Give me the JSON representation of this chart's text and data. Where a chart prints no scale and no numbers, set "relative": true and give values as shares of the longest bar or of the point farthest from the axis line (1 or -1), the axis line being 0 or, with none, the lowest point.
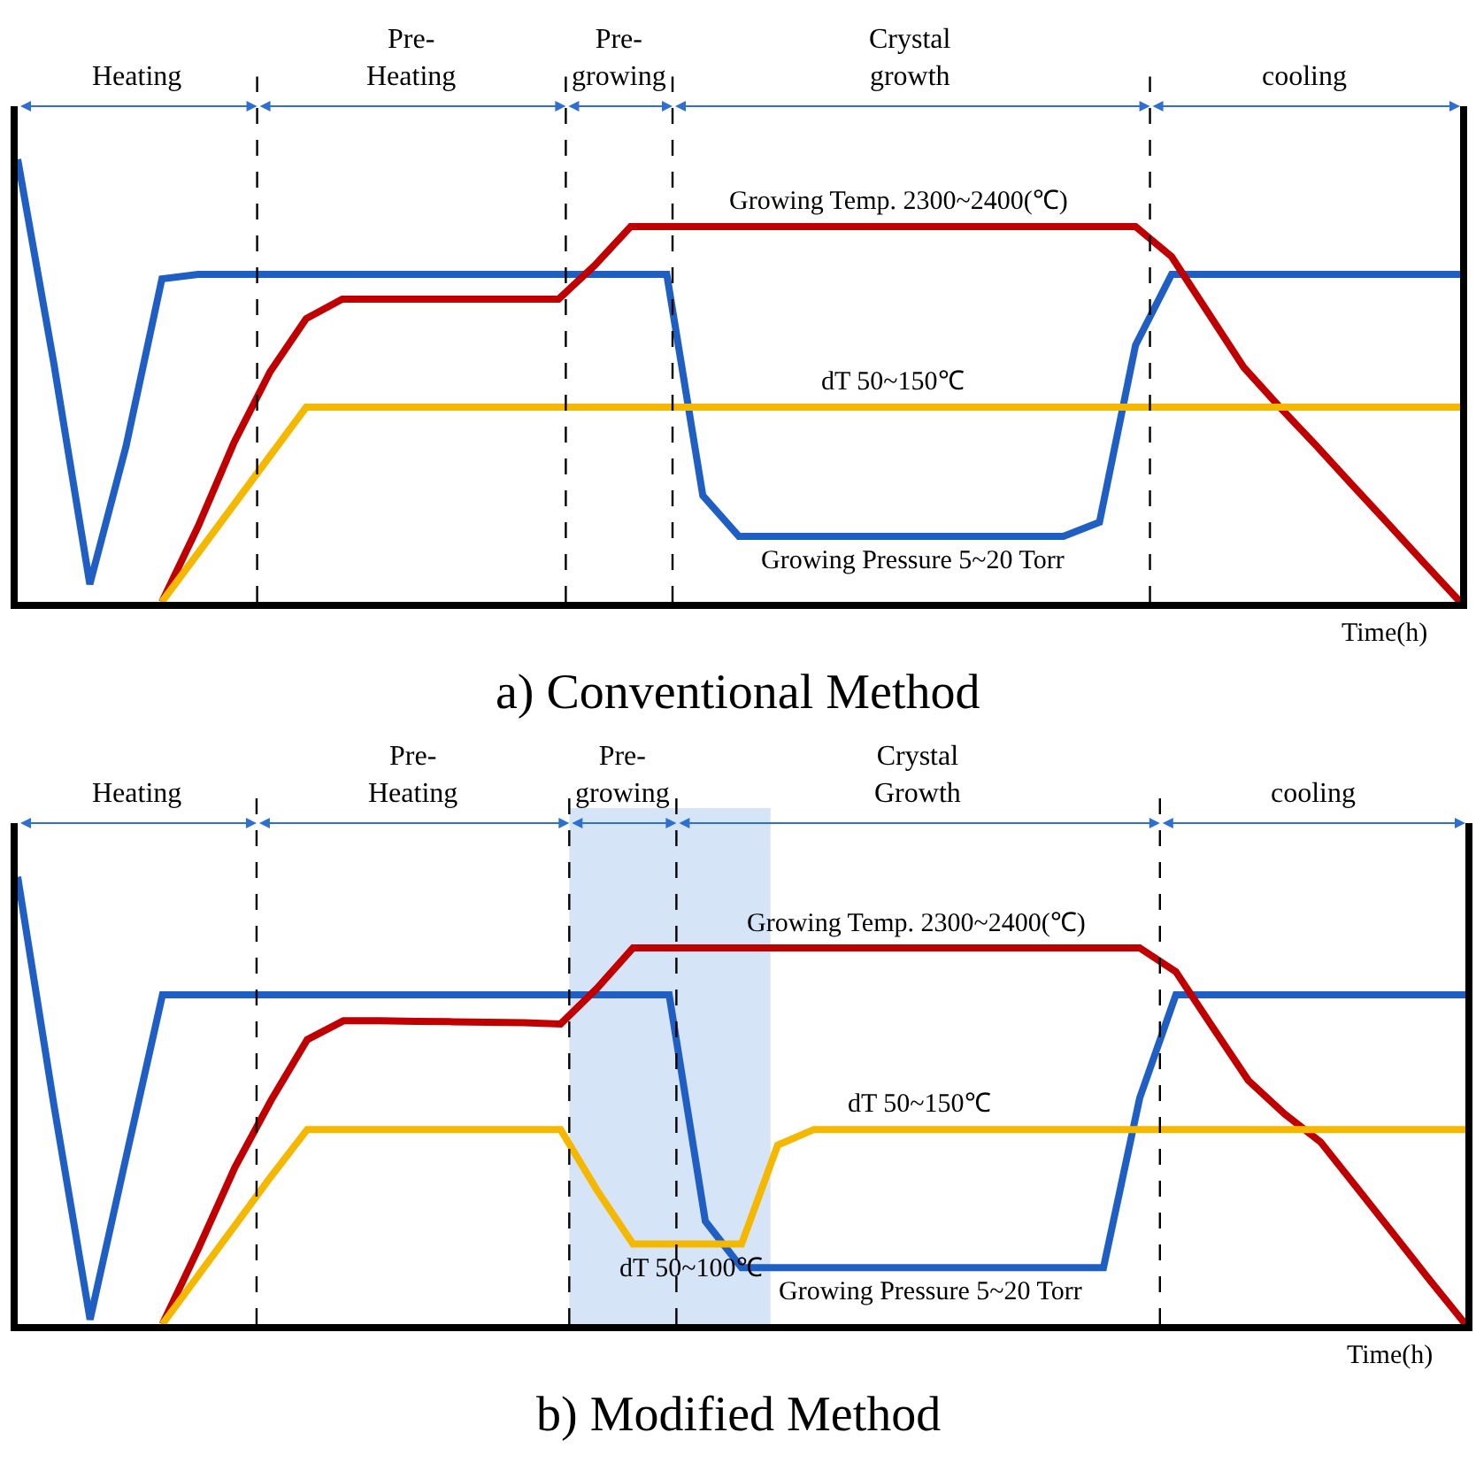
{
  "chart_data": [
    {
      "type": "line",
      "title": "a) Conventional Method",
      "xlabel": "Time(h)",
      "relative": true,
      "categories": [
        null,
        null,
        null,
        null,
        null,
        null,
        null,
        null,
        null,
        null,
        null,
        null,
        null,
        null,
        null,
        null,
        null,
        null,
        null,
        null,
        null,
        null,
        null,
        null,
        null,
        null,
        null,
        null,
        null,
        null,
        null,
        null,
        null,
        null,
        null,
        null,
        null,
        null,
        null,
        null,
        null
      ],
      "grid": false,
      "marker": "none",
      "line_style": "solid",
      "series": [
        {
          "color": "#1f5fc4",
          "values": [
            1.0,
            0.54,
            0.04,
            0.35,
            0.73,
            0.74,
            0.74,
            0.74,
            0.74,
            0.74,
            0.74,
            0.74,
            0.74,
            0.74,
            0.74,
            0.74,
            0.74,
            0.74,
            0.74,
            0.24,
            0.148,
            0.148,
            0.148,
            0.148,
            0.148,
            0.148,
            0.148,
            0.148,
            0.148,
            0.148,
            0.18,
            0.58,
            0.74,
            0.74,
            0.74,
            0.74,
            0.74,
            0.74,
            0.74,
            0.74,
            0.74
          ]
        },
        {
          "color": "#c00000",
          "values": [
            null,
            null,
            null,
            null,
            0,
            0.17,
            0.36,
            0.52,
            0.64,
            0.684,
            0.684,
            0.684,
            0.684,
            0.684,
            0.684,
            0.684,
            0.76,
            0.848,
            0.848,
            0.848,
            0.848,
            0.848,
            0.848,
            0.848,
            0.848,
            0.848,
            0.848,
            0.848,
            0.848,
            0.848,
            0.848,
            0.848,
            0.78,
            0.655,
            0.53,
            0.44,
            0.354,
            0.265,
            0.177,
            0.088,
            0
          ]
        },
        {
          "color": "#f5b800",
          "values": [
            null,
            null,
            null,
            null,
            0,
            0.11,
            0.22,
            0.33,
            0.44,
            0.44,
            0.44,
            0.44,
            0.44,
            0.44,
            0.44,
            0.44,
            0.44,
            0.44,
            0.44,
            0.44,
            0.44,
            0.44,
            0.44,
            0.44,
            0.44,
            0.44,
            0.44,
            0.44,
            0.44,
            0.44,
            0.44,
            0.44,
            0.44,
            0.44,
            0.44,
            0.44,
            0.44,
            0.44,
            0.44,
            0.44,
            0.44
          ]
        }
      ],
      "annotations": [
        "Heating",
        "Pre-\nHeating",
        "Pre-\ngrowing",
        "Crystal\ngrowth",
        "cooling",
        {
          "text": "Growing Temp. 2300~2400(℃)",
          "y": 0.848
        },
        {
          "text": "dT 50~150℃",
          "y": 0.44
        },
        {
          "text": "Growing Pressure 5~20 Torr",
          "y": 0.148
        }
      ]
    },
    {
      "type": "line",
      "title": "b) Modified Method",
      "xlabel": "Time(h)",
      "relative": true,
      "categories": [
        null,
        null,
        null,
        null,
        null,
        null,
        null,
        null,
        null,
        null,
        null,
        null,
        null,
        null,
        null,
        null,
        null,
        null,
        null,
        null,
        null,
        null,
        null,
        null,
        null,
        null,
        null,
        null,
        null,
        null,
        null,
        null,
        null,
        null,
        null,
        null,
        null,
        null,
        null,
        null,
        null
      ],
      "grid": false,
      "marker": "none",
      "line_style": "solid",
      "series": [
        {
          "color": "#1f5fc4",
          "values": [
            1.0,
            0.49,
            0.01,
            0.375,
            0.736,
            0.736,
            0.736,
            0.736,
            0.736,
            0.736,
            0.736,
            0.736,
            0.736,
            0.736,
            0.736,
            0.736,
            0.736,
            0.736,
            0.736,
            0.23,
            0.126,
            0.126,
            0.126,
            0.126,
            0.126,
            0.126,
            0.126,
            0.126,
            0.126,
            0.126,
            0.126,
            0.505,
            0.736,
            0.736,
            0.736,
            0.736,
            0.736,
            0.736,
            0.736,
            0.736,
            0.736
          ]
        },
        {
          "color": "#c00000",
          "values": [
            null,
            null,
            null,
            null,
            0,
            0.17,
            0.35,
            0.5,
            0.636,
            0.678,
            0.678,
            0.677,
            0.676,
            0.675,
            0.674,
            0.671,
            0.75,
            0.841,
            0.841,
            0.841,
            0.841,
            0.841,
            0.841,
            0.841,
            0.841,
            0.841,
            0.841,
            0.841,
            0.841,
            0.841,
            0.841,
            0.841,
            0.788,
            0.666,
            0.545,
            0.47,
            0.407,
            0.305,
            0.203,
            0.1,
            0
          ]
        },
        {
          "color": "#f5b800",
          "values": [
            null,
            null,
            null,
            null,
            0,
            0.11,
            0.22,
            0.33,
            0.435,
            0.435,
            0.435,
            0.435,
            0.435,
            0.435,
            0.435,
            0.435,
            0.3,
            0.179,
            0.179,
            0.179,
            0.179,
            0.4,
            0.435,
            0.435,
            0.435,
            0.435,
            0.435,
            0.435,
            0.435,
            0.435,
            0.435,
            0.435,
            0.435,
            0.435,
            0.435,
            0.435,
            0.435,
            0.435,
            0.435,
            0.435,
            0.435
          ]
        }
      ],
      "annotations": [
        "Heating",
        "Pre-\nHeating",
        "Pre-\ngrowing",
        "Crystal\nGrowth",
        "cooling",
        {
          "text": "Growing Temp. 2300~2400(℃)",
          "y": 0.841
        },
        {
          "text": "dT 50~150℃",
          "y": 0.435
        },
        {
          "text": "dT 50~100℃",
          "y": 0.179
        },
        {
          "text": "Growing Pressure 5~20 Torr",
          "y": 0.126
        }
      ]
    }
  ]
}
